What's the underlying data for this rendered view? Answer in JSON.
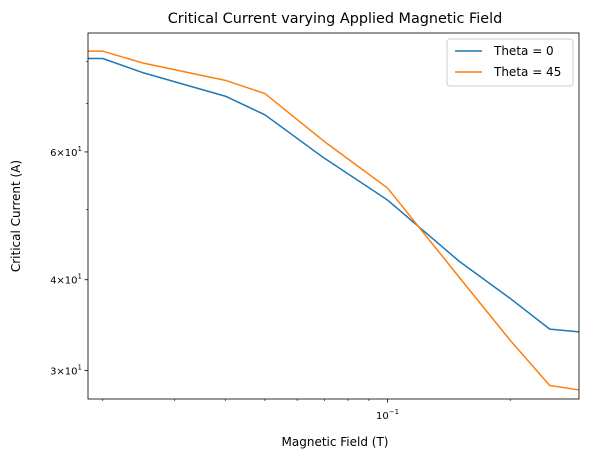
{
  "chart_data": {
    "type": "line",
    "title": "Critical Current varying Applied Magnetic Field",
    "xlabel": "Magnetic Field (T)",
    "ylabel": "Critical Current (A)",
    "xscale": "log",
    "yscale": "log",
    "xlim": [
      0.0184,
      0.295
    ],
    "ylim": [
      27.4,
      87.5
    ],
    "x_major_ticks": [
      {
        "value": 0.1,
        "base": "10",
        "exp": "−1"
      }
    ],
    "y_major_ticks": [
      {
        "value": 30,
        "mant": "3",
        "base": "10",
        "exp": "1"
      },
      {
        "value": 40,
        "mant": "4",
        "base": "10",
        "exp": "1"
      },
      {
        "value": 60,
        "mant": "6",
        "base": "10",
        "exp": "1"
      }
    ],
    "x_minor_ticks": [
      0.02,
      0.03,
      0.04,
      0.05,
      0.06,
      0.07,
      0.08,
      0.09,
      0.2,
      0.3
    ],
    "y_minor_ticks": [
      50,
      70,
      80
    ],
    "grid": false,
    "legend_position": "upper right",
    "series": [
      {
        "name": "Theta = 0",
        "color": "#1f77b4",
        "x": [
          0.0184,
          0.02,
          0.025,
          0.04,
          0.05,
          0.07,
          0.1,
          0.15,
          0.2,
          0.25,
          0.295
        ],
        "y": [
          80.7,
          80.7,
          77.2,
          71.6,
          67.5,
          58.8,
          51.5,
          42.4,
          37.7,
          34.2,
          33.9
        ]
      },
      {
        "name": "Theta = 45",
        "color": "#ff7f0e",
        "x": [
          0.0184,
          0.02,
          0.025,
          0.04,
          0.05,
          0.07,
          0.1,
          0.15,
          0.2,
          0.25,
          0.295
        ],
        "y": [
          82.6,
          82.6,
          79.6,
          75.3,
          72.2,
          62.0,
          53.5,
          40.3,
          33.0,
          28.6,
          28.2
        ]
      }
    ]
  }
}
